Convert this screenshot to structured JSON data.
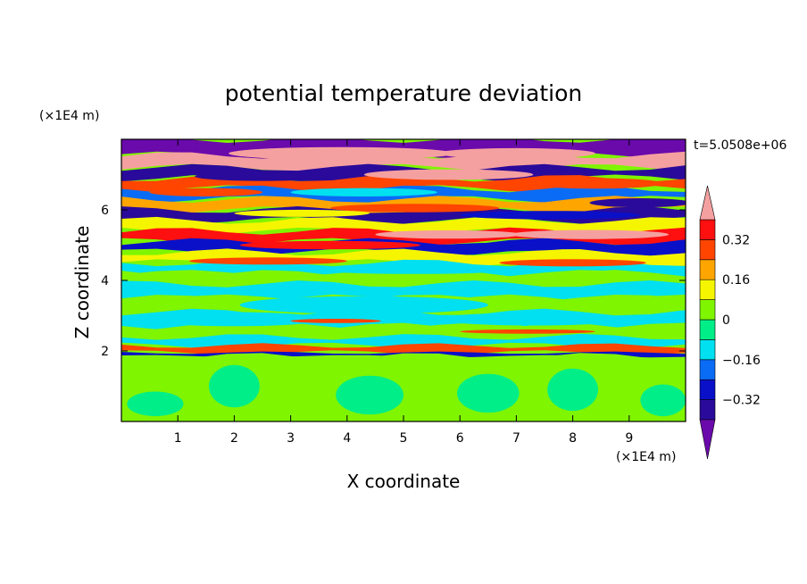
{
  "chart_data": {
    "type": "heatmap",
    "title": "potential temperature deviation",
    "xlabel": "X coordinate",
    "ylabel": "Z coordinate",
    "x_unit": "(×1E4 m)",
    "y_unit": "(×1E4 m)",
    "time_label": "t=5.0508e+06",
    "xlim": [
      0,
      10
    ],
    "ylim": [
      0,
      8
    ],
    "x_ticks": [
      1,
      2,
      3,
      4,
      5,
      6,
      7,
      8,
      9
    ],
    "y_ticks": [
      2,
      4,
      6
    ],
    "colorbar": {
      "levels": [
        -0.4,
        -0.32,
        -0.24,
        -0.16,
        -0.08,
        0,
        0.08,
        0.16,
        0.24,
        0.32,
        0.4
      ],
      "tick_labels": [
        "0.32",
        "0.16",
        "0",
        "−0.16",
        "−0.32"
      ],
      "tick_values": [
        0.32,
        0.16,
        0,
        -0.16,
        -0.32
      ],
      "colors": [
        "#6a0aab",
        "#2a0a9a",
        "#0a10c8",
        "#0a6cf5",
        "#00e0f0",
        "#00ee88",
        "#7ff500",
        "#f5f500",
        "#ffa500",
        "#ff4500",
        "#ff1010",
        "#f5a0a0"
      ]
    },
    "bands": [
      {
        "z0": 7.55,
        "z1": 8.0,
        "v": -0.45
      },
      {
        "z0": 7.2,
        "z1": 7.55,
        "v": 0.45
      },
      {
        "z0": 6.9,
        "z1": 7.2,
        "v": -0.35
      },
      {
        "z0": 6.6,
        "z1": 6.9,
        "v": 0.3
      },
      {
        "z0": 6.3,
        "z1": 6.6,
        "v": -0.2
      },
      {
        "z0": 6.0,
        "z1": 6.3,
        "v": 0.2
      },
      {
        "z0": 5.7,
        "z1": 6.0,
        "v": -0.35
      },
      {
        "z0": 5.4,
        "z1": 5.7,
        "v": 0.1
      },
      {
        "z0": 5.1,
        "z1": 5.4,
        "v": 0.35
      },
      {
        "z0": 4.8,
        "z1": 5.1,
        "v": -0.3
      },
      {
        "z0": 4.5,
        "z1": 4.8,
        "v": 0.15
      },
      {
        "z0": 4.2,
        "z1": 4.5,
        "v": -0.12
      },
      {
        "z0": 3.9,
        "z1": 4.2,
        "v": 0.05
      },
      {
        "z0": 3.5,
        "z1": 3.9,
        "v": -0.12
      },
      {
        "z0": 3.1,
        "z1": 3.5,
        "v": 0.05
      },
      {
        "z0": 2.7,
        "z1": 3.1,
        "v": -0.1
      },
      {
        "z0": 2.4,
        "z1": 2.7,
        "v": 0.05
      },
      {
        "z0": 2.15,
        "z1": 2.4,
        "v": -0.15
      },
      {
        "z0": 1.95,
        "z1": 2.15,
        "v": 0.3
      },
      {
        "z0": 1.85,
        "z1": 1.95,
        "v": -0.3
      },
      {
        "z0": 0.0,
        "z1": 1.85,
        "v": 0.04
      }
    ],
    "blobs": [
      {
        "x": 3.9,
        "z": 7.6,
        "rx": 2.0,
        "rz": 0.18,
        "v": 0.45
      },
      {
        "x": 7.0,
        "z": 7.6,
        "rx": 1.4,
        "rz": 0.15,
        "v": 0.45
      },
      {
        "x": 2.5,
        "z": 6.95,
        "rx": 1.2,
        "rz": 0.13,
        "v": -0.4
      },
      {
        "x": 5.8,
        "z": 7.0,
        "rx": 1.5,
        "rz": 0.15,
        "v": 0.4
      },
      {
        "x": 8.4,
        "z": 6.75,
        "rx": 1.2,
        "rz": 0.15,
        "v": 0.3
      },
      {
        "x": 4.3,
        "z": 6.5,
        "rx": 1.3,
        "rz": 0.12,
        "v": -0.15
      },
      {
        "x": 1.5,
        "z": 6.5,
        "rx": 1.0,
        "rz": 0.12,
        "v": 0.25
      },
      {
        "x": 9.2,
        "z": 6.2,
        "rx": 0.9,
        "rz": 0.13,
        "v": -0.35
      },
      {
        "x": 5.2,
        "z": 6.05,
        "rx": 1.5,
        "rz": 0.12,
        "v": 0.3
      },
      {
        "x": 3.2,
        "z": 5.9,
        "rx": 1.2,
        "rz": 0.1,
        "v": 0.1
      },
      {
        "x": 7.6,
        "z": 5.85,
        "rx": 1.6,
        "rz": 0.12,
        "v": -0.3
      },
      {
        "x": 5.8,
        "z": 5.3,
        "rx": 1.3,
        "rz": 0.12,
        "v": 0.4
      },
      {
        "x": 8.3,
        "z": 5.3,
        "rx": 1.4,
        "rz": 0.13,
        "v": 0.42
      },
      {
        "x": 3.7,
        "z": 5.0,
        "rx": 1.6,
        "rz": 0.12,
        "v": 0.35
      },
      {
        "x": 1.2,
        "z": 5.0,
        "rx": 0.9,
        "rz": 0.12,
        "v": -0.25
      },
      {
        "x": 6.8,
        "z": 4.95,
        "rx": 1.2,
        "rz": 0.12,
        "v": -0.3
      },
      {
        "x": 2.6,
        "z": 4.55,
        "rx": 1.4,
        "rz": 0.1,
        "v": 0.3
      },
      {
        "x": 8.0,
        "z": 4.5,
        "rx": 1.3,
        "rz": 0.1,
        "v": 0.3
      },
      {
        "x": 5.2,
        "z": 4.3,
        "rx": 1.8,
        "rz": 0.12,
        "v": -0.1
      },
      {
        "x": 4.3,
        "z": 3.3,
        "rx": 2.2,
        "rz": 0.25,
        "v": -0.1
      },
      {
        "x": 2.0,
        "z": 2.9,
        "rx": 1.6,
        "rz": 0.2,
        "v": -0.1
      },
      {
        "x": 7.3,
        "z": 2.9,
        "rx": 1.7,
        "rz": 0.18,
        "v": -0.12
      },
      {
        "x": 3.8,
        "z": 2.85,
        "rx": 0.8,
        "rz": 0.06,
        "v": 0.25
      },
      {
        "x": 7.2,
        "z": 2.55,
        "rx": 1.2,
        "rz": 0.06,
        "v": 0.3
      },
      {
        "x": 2.0,
        "z": 1.0,
        "rx": 0.45,
        "rz": 0.6,
        "v": -0.02
      },
      {
        "x": 4.4,
        "z": 0.75,
        "rx": 0.6,
        "rz": 0.55,
        "v": -0.03
      },
      {
        "x": 6.5,
        "z": 0.8,
        "rx": 0.55,
        "rz": 0.55,
        "v": -0.02
      },
      {
        "x": 8.0,
        "z": 0.9,
        "rx": 0.45,
        "rz": 0.6,
        "v": -0.03
      },
      {
        "x": 0.6,
        "z": 0.5,
        "rx": 0.5,
        "rz": 0.35,
        "v": -0.02
      },
      {
        "x": 9.6,
        "z": 0.6,
        "rx": 0.4,
        "rz": 0.45,
        "v": -0.02
      }
    ]
  }
}
